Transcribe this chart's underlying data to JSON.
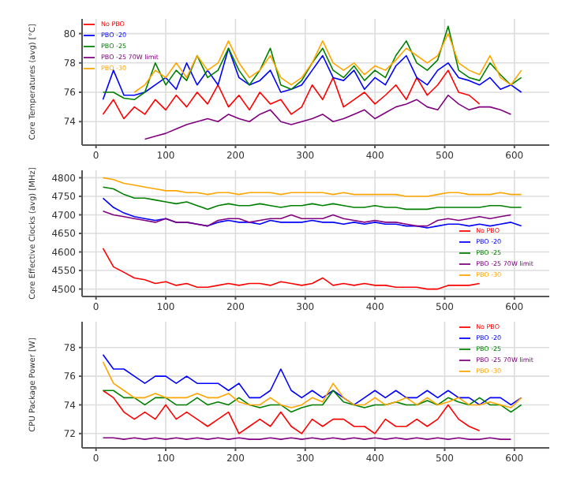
{
  "chart_data": [
    {
      "type": "line",
      "ylabel": "Core Temperatures (avg) [°C]",
      "grid": true,
      "legend": "top left",
      "marker": "none",
      "xlim": [
        -20,
        650
      ],
      "xticks": [
        0,
        100,
        200,
        300,
        400,
        500,
        600
      ],
      "ylim": [
        72.4,
        81
      ],
      "yticks": [
        74,
        76,
        78,
        80
      ],
      "x": [
        10,
        25,
        40,
        55,
        70,
        85,
        100,
        115,
        130,
        145,
        160,
        175,
        190,
        205,
        220,
        235,
        250,
        265,
        280,
        295,
        310,
        325,
        340,
        355,
        370,
        385,
        400,
        415,
        430,
        445,
        460,
        475,
        490,
        505,
        520,
        535,
        550,
        565,
        580,
        595,
        610
      ],
      "series": [
        {
          "name": "No PBO",
          "color": "#ff0000",
          "values": [
            74.5,
            75.5,
            74.2,
            75,
            74.5,
            75.5,
            74.8,
            75.8,
            75,
            76,
            75.2,
            76.5,
            75,
            75.8,
            74.8,
            76,
            75.2,
            75.5,
            74.5,
            75,
            76.5,
            75.5,
            77,
            75,
            75.5,
            76,
            75.2,
            75.8,
            76.5,
            75.5,
            77,
            75.8,
            76.5,
            77.5,
            76,
            75.8,
            75.2,
            null,
            null,
            null,
            null
          ]
        },
        {
          "name": "PBO -20",
          "color": "#0000ff",
          "values": [
            75.5,
            77.5,
            75.8,
            75.8,
            76,
            76.5,
            77,
            76.2,
            78,
            76.5,
            77.5,
            76.5,
            79,
            77,
            76.5,
            76.8,
            77.5,
            76,
            76.2,
            76.5,
            77.5,
            78.5,
            77,
            76.8,
            77.5,
            76.2,
            77,
            76.5,
            77.8,
            78.5,
            77,
            76.5,
            77.5,
            78,
            77,
            76.8,
            76.5,
            77,
            76.2,
            76.5,
            76
          ]
        },
        {
          "name": "PBO -25",
          "color": "#008000",
          "values": [
            76,
            76,
            75.6,
            75.5,
            76,
            78,
            76.5,
            77.5,
            76.8,
            78.5,
            77,
            77.5,
            79,
            77.5,
            76.5,
            77.5,
            79,
            76.5,
            76.2,
            76.8,
            78,
            79,
            77.5,
            77,
            77.8,
            76.8,
            77.5,
            77,
            78.5,
            79.5,
            78,
            77.5,
            78.2,
            80.5,
            77.5,
            77,
            76.8,
            78,
            77.2,
            76.5,
            77
          ]
        },
        {
          "name": "PBO -25 70W limit",
          "color": "#800080",
          "values": [
            null,
            null,
            null,
            null,
            72.8,
            73,
            73.2,
            73.5,
            73.8,
            74,
            74.2,
            74,
            74.5,
            74.2,
            74,
            74.5,
            74.8,
            74,
            73.8,
            74,
            74.2,
            74.5,
            74,
            74.2,
            74.5,
            74.8,
            74.2,
            74.6,
            75,
            75.2,
            75.5,
            75,
            74.8,
            75.8,
            75.2,
            74.8,
            75,
            75,
            74.8,
            74.5,
            null
          ]
        },
        {
          "name": "PBO -30",
          "color": "#ffa500",
          "values": [
            null,
            null,
            null,
            76,
            76.5,
            77.5,
            77,
            78,
            77,
            78.5,
            77.5,
            78,
            79.5,
            78,
            77,
            77.5,
            78.5,
            77,
            76.5,
            77,
            78,
            79.5,
            78,
            77.5,
            78,
            77.2,
            77.8,
            77.5,
            78.2,
            79,
            78.5,
            78,
            78.5,
            80,
            78,
            77.5,
            77.2,
            78.5,
            77,
            76.5,
            77.5
          ]
        }
      ]
    },
    {
      "type": "line",
      "ylabel": "Core Effective Clocks (avg) [MHz]",
      "grid": true,
      "legend": "bottom right",
      "marker": "none",
      "xlim": [
        -20,
        650
      ],
      "xticks": [
        0,
        100,
        200,
        300,
        400,
        500,
        600
      ],
      "ylim": [
        4480,
        4820
      ],
      "yticks": [
        4500,
        4550,
        4600,
        4650,
        4700,
        4750,
        4800
      ],
      "x": [
        10,
        25,
        40,
        55,
        70,
        85,
        100,
        115,
        130,
        145,
        160,
        175,
        190,
        205,
        220,
        235,
        250,
        265,
        280,
        295,
        310,
        325,
        340,
        355,
        370,
        385,
        400,
        415,
        430,
        445,
        460,
        475,
        490,
        505,
        520,
        535,
        550,
        565,
        580,
        595,
        610
      ],
      "series": [
        {
          "name": "No PBO",
          "color": "#ff0000",
          "values": [
            4610,
            4560,
            4545,
            4530,
            4525,
            4515,
            4520,
            4510,
            4515,
            4505,
            4505,
            4510,
            4515,
            4510,
            4515,
            4515,
            4510,
            4520,
            4515,
            4510,
            4515,
            4530,
            4510,
            4515,
            4510,
            4515,
            4510,
            4510,
            4505,
            4505,
            4505,
            4500,
            4500,
            4510,
            4510,
            4510,
            4515,
            null,
            null,
            null,
            null
          ]
        },
        {
          "name": "PBO -20",
          "color": "#0000ff",
          "values": [
            4745,
            4720,
            4705,
            4695,
            4690,
            4685,
            4690,
            4680,
            4680,
            4675,
            4670,
            4680,
            4685,
            4680,
            4680,
            4675,
            4685,
            4680,
            4680,
            4680,
            4685,
            4680,
            4680,
            4675,
            4680,
            4675,
            4680,
            4675,
            4675,
            4670,
            4670,
            4665,
            4670,
            4675,
            4675,
            4670,
            4675,
            4670,
            4675,
            4680,
            4670
          ]
        },
        {
          "name": "PBO -25",
          "color": "#008000",
          "values": [
            4775,
            4770,
            4755,
            4745,
            4745,
            4740,
            4735,
            4730,
            4735,
            4725,
            4715,
            4725,
            4730,
            4725,
            4725,
            4730,
            4725,
            4720,
            4725,
            4725,
            4730,
            4725,
            4730,
            4725,
            4720,
            4720,
            4725,
            4720,
            4720,
            4715,
            4715,
            4715,
            4720,
            4720,
            4720,
            4720,
            4720,
            4725,
            4725,
            4720,
            4720
          ]
        },
        {
          "name": "PBO -25 70W limit",
          "color": "#800080",
          "values": [
            4710,
            4700,
            4695,
            4690,
            4685,
            4680,
            4690,
            4680,
            4680,
            4675,
            4670,
            4685,
            4690,
            4690,
            4680,
            4685,
            4690,
            4690,
            4700,
            4690,
            4690,
            4690,
            4700,
            4690,
            4685,
            4680,
            4685,
            4680,
            4680,
            4675,
            4670,
            4670,
            4685,
            4690,
            4685,
            4690,
            4695,
            4690,
            4695,
            4700,
            null
          ]
        },
        {
          "name": "PBO -30",
          "color": "#ffa500",
          "values": [
            4800,
            4795,
            4785,
            4780,
            4775,
            4770,
            4765,
            4765,
            4760,
            4760,
            4755,
            4760,
            4760,
            4755,
            4760,
            4760,
            4760,
            4755,
            4760,
            4760,
            4760,
            4760,
            4755,
            4760,
            4755,
            4755,
            4755,
            4755,
            4755,
            4750,
            4750,
            4750,
            4755,
            4760,
            4760,
            4755,
            4755,
            4755,
            4760,
            4755,
            4755
          ]
        }
      ]
    },
    {
      "type": "line",
      "ylabel": "CPU Package Power [W]",
      "grid": true,
      "legend": "top right",
      "marker": "none",
      "xlim": [
        -20,
        650
      ],
      "xticks": [
        0,
        100,
        200,
        300,
        400,
        500,
        600
      ],
      "ylim": [
        71,
        79.8
      ],
      "yticks": [
        72,
        74,
        76,
        78
      ],
      "x": [
        10,
        25,
        40,
        55,
        70,
        85,
        100,
        115,
        130,
        145,
        160,
        175,
        190,
        205,
        220,
        235,
        250,
        265,
        280,
        295,
        310,
        325,
        340,
        355,
        370,
        385,
        400,
        415,
        430,
        445,
        460,
        475,
        490,
        505,
        520,
        535,
        550,
        565,
        580,
        595,
        610
      ],
      "series": [
        {
          "name": "No PBO",
          "color": "#ff0000",
          "values": [
            75,
            74.5,
            73.5,
            73,
            73.5,
            73,
            74,
            73,
            73.5,
            73,
            72.5,
            73,
            73.5,
            72,
            72.5,
            73,
            72.5,
            73.5,
            72.5,
            72,
            73,
            72.5,
            73,
            73,
            72.5,
            72.5,
            72,
            73,
            72.5,
            72.5,
            73,
            72.5,
            73,
            74,
            73,
            72.5,
            72.2,
            null,
            null,
            null,
            null
          ]
        },
        {
          "name": "PBO -20",
          "color": "#0000ff",
          "values": [
            77.5,
            76.5,
            76.5,
            76,
            75.5,
            76,
            76,
            75.5,
            76,
            75.5,
            75.5,
            75.5,
            75,
            75.5,
            74.5,
            74.5,
            75,
            76.5,
            75,
            74.5,
            75,
            74.5,
            75,
            74.5,
            74,
            74.5,
            75,
            74.5,
            75,
            74.5,
            74.5,
            75,
            74.5,
            75,
            74.5,
            74.5,
            74,
            74.5,
            74.5,
            74,
            74.5
          ]
        },
        {
          "name": "PBO -25",
          "color": "#008000",
          "values": [
            75,
            75,
            74.5,
            74.5,
            74,
            74.5,
            74.5,
            74,
            74,
            74.5,
            74,
            74.2,
            74,
            74.5,
            74,
            73.8,
            74,
            74,
            73.5,
            73.8,
            74,
            74,
            75,
            74.2,
            74,
            73.8,
            74,
            74,
            74.2,
            74,
            74,
            74.3,
            74,
            74.5,
            74.2,
            74,
            74.5,
            74,
            74,
            73.5,
            74
          ]
        },
        {
          "name": "PBO -25 70W limit",
          "color": "#800080",
          "values": [
            71.7,
            71.7,
            71.6,
            71.7,
            71.6,
            71.7,
            71.6,
            71.7,
            71.6,
            71.7,
            71.6,
            71.7,
            71.6,
            71.7,
            71.6,
            71.6,
            71.7,
            71.6,
            71.7,
            71.6,
            71.7,
            71.6,
            71.7,
            71.6,
            71.7,
            71.6,
            71.7,
            71.6,
            71.7,
            71.6,
            71.7,
            71.6,
            71.7,
            71.6,
            71.7,
            71.6,
            71.6,
            71.7,
            71.6,
            71.6,
            null
          ]
        },
        {
          "name": "PBO -30",
          "color": "#ffa500",
          "values": [
            77,
            75.5,
            75,
            74.5,
            74.5,
            74.8,
            74.5,
            74.5,
            74.5,
            74.8,
            74.5,
            74.5,
            74.8,
            74.2,
            74,
            74,
            74.5,
            74,
            73.8,
            74,
            74.5,
            74.2,
            75.5,
            74.5,
            74,
            74,
            74.5,
            74,
            74.2,
            74.5,
            74,
            74.5,
            74,
            74.2,
            74.5,
            74,
            74,
            74.2,
            74,
            73.8,
            74.5
          ]
        }
      ]
    }
  ]
}
